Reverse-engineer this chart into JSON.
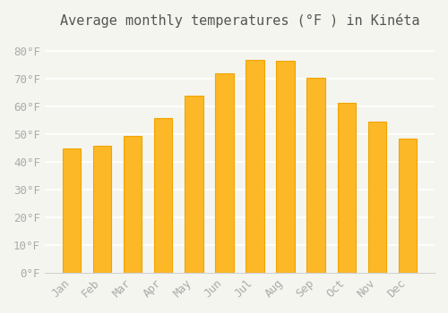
{
  "title": "Average monthly temperatures (°F ) in Kinéta",
  "months": [
    "Jan",
    "Feb",
    "Mar",
    "Apr",
    "May",
    "Jun",
    "Jul",
    "Aug",
    "Sep",
    "Oct",
    "Nov",
    "Dec"
  ],
  "values": [
    45.0,
    46.0,
    49.5,
    56.0,
    64.0,
    72.0,
    77.0,
    76.5,
    70.5,
    61.5,
    54.5,
    48.5
  ],
  "bar_color_face": "#FDB827",
  "bar_color_edge": "#F0A500",
  "ylim": [
    0,
    85
  ],
  "yticks": [
    0,
    10,
    20,
    30,
    40,
    50,
    60,
    70,
    80
  ],
  "ytick_labels": [
    "0°F",
    "10°F",
    "20°F",
    "30°F",
    "40°F",
    "50°F",
    "60°F",
    "70°F",
    "80°F"
  ],
  "background_color": "#f5f5f0",
  "grid_color": "#ffffff",
  "title_fontsize": 11,
  "tick_fontsize": 9,
  "tick_color": "#aaaaaa",
  "bar_width": 0.6
}
